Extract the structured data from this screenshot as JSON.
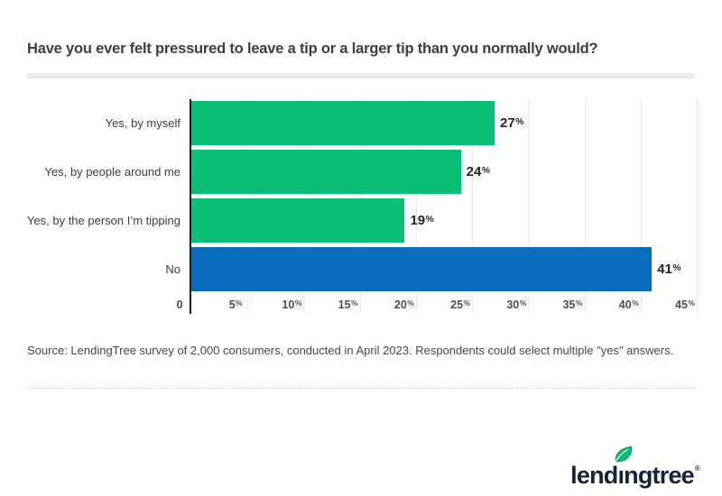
{
  "page": {
    "title": "Have you ever felt pressured to leave a tip or a larger tip than you normally would?"
  },
  "chart_data": {
    "type": "bar",
    "orientation": "horizontal",
    "title": "Have you ever felt pressured to leave a tip or a larger tip than you normally would?",
    "categories": [
      "Yes, by myself",
      "Yes, by people around me",
      "Yes, by the person I’m tipping",
      "No"
    ],
    "values": [
      27,
      24,
      19,
      41
    ],
    "value_labels": [
      "27%",
      "24%",
      "19%",
      "41%"
    ],
    "bar_colors": [
      "#0bbe76",
      "#0bbe76",
      "#0bbe76",
      "#0a6cbd"
    ],
    "xlim": [
      0,
      45
    ],
    "ticks": [
      {
        "value": 0,
        "label": "0"
      },
      {
        "value": 5,
        "label": "5%"
      },
      {
        "value": 10,
        "label": "10%"
      },
      {
        "value": 15,
        "label": "15%"
      },
      {
        "value": 20,
        "label": "20%"
      },
      {
        "value": 25,
        "label": "25%"
      },
      {
        "value": 30,
        "label": "30%"
      },
      {
        "value": 35,
        "label": "35%"
      },
      {
        "value": 40,
        "label": "40%"
      },
      {
        "value": 45,
        "label": "45%"
      }
    ],
    "grid": "vertical gridlines at 5% intervals",
    "legend": "none",
    "axis_color": "#1c1c1c",
    "gridline_color": "#ebebeb"
  },
  "source_note": "Source: LendingTree survey of 2,000 consumers, conducted in April 2023. Respondents could select multiple \"yes\" answers.",
  "logo": {
    "text_before_leaf": "lend",
    "leaf_letter": "ı",
    "text_after_leaf": "ngtree",
    "registered_mark": "®",
    "brand_green": "#0abf72",
    "brand_navy": "#15233f"
  }
}
